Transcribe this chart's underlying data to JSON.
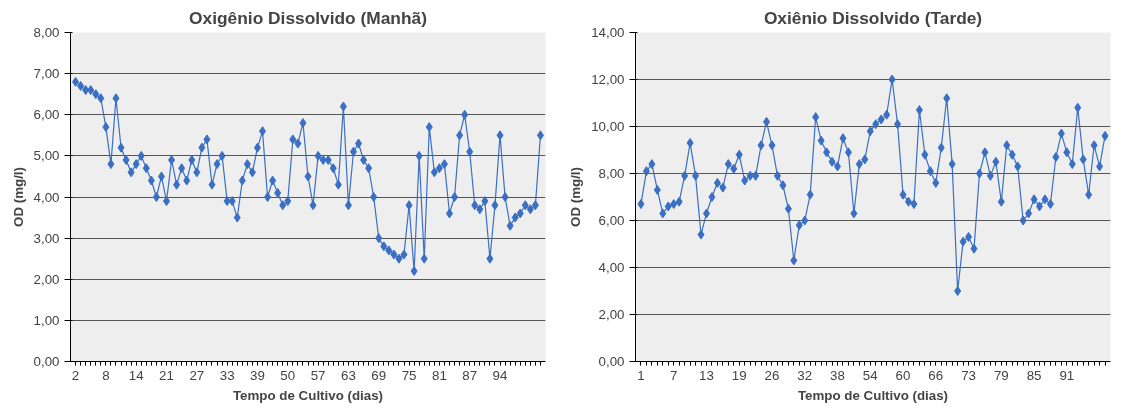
{
  "chart_data": [
    {
      "type": "line",
      "title": "Oxigênio Dissolvido (Manhã)",
      "xlabel": "Tempo de Cultivo (dias)",
      "ylabel": "OD (mg/l)",
      "marker": "diamond",
      "grid": "y",
      "categories": [
        "2",
        null,
        null,
        null,
        null,
        null,
        "8",
        null,
        null,
        null,
        null,
        null,
        "14",
        null,
        null,
        null,
        null,
        null,
        "21",
        null,
        null,
        null,
        null,
        null,
        "27",
        null,
        null,
        null,
        null,
        null,
        "33",
        null,
        null,
        null,
        null,
        null,
        "39",
        null,
        null,
        null,
        null,
        null,
        "50",
        null,
        null,
        null,
        null,
        null,
        "57",
        null,
        null,
        null,
        null,
        null,
        "63",
        null,
        null,
        null,
        null,
        null,
        "69",
        null,
        null,
        null,
        null,
        null,
        "75",
        null,
        null,
        null,
        null,
        null,
        "81",
        null,
        null,
        null,
        null,
        null,
        "87",
        null,
        null,
        null,
        null,
        null,
        "94",
        null,
        null,
        null,
        null,
        null,
        null,
        null,
        null
      ],
      "ylim": [
        0,
        8
      ],
      "yticks": [
        {
          "value": 0,
          "label": "0,00"
        },
        {
          "value": 1,
          "label": "1,00"
        },
        {
          "value": 2,
          "label": "2,00"
        },
        {
          "value": 3,
          "label": "3,00"
        },
        {
          "value": 4,
          "label": "4,00"
        },
        {
          "value": 5,
          "label": "5,00"
        },
        {
          "value": 6,
          "label": "6,00"
        },
        {
          "value": 7,
          "label": "7,00"
        },
        {
          "value": 8,
          "label": "8,00"
        }
      ],
      "series": [
        {
          "color": "#3a6fc4",
          "values": [
            6.8,
            6.7,
            6.6,
            6.6,
            6.5,
            6.4,
            5.7,
            4.8,
            6.4,
            5.2,
            4.9,
            4.6,
            4.8,
            5.0,
            4.7,
            4.4,
            4.0,
            4.5,
            3.9,
            4.9,
            4.3,
            4.7,
            4.4,
            4.9,
            4.6,
            5.2,
            5.4,
            4.3,
            4.8,
            5.0,
            3.9,
            3.9,
            3.5,
            4.4,
            4.8,
            4.6,
            5.2,
            5.6,
            4.0,
            4.4,
            4.1,
            3.8,
            3.9,
            5.4,
            5.3,
            5.8,
            4.5,
            3.8,
            5.0,
            4.9,
            4.9,
            4.7,
            4.3,
            6.2,
            3.8,
            5.1,
            5.3,
            4.9,
            4.7,
            4.0,
            3.0,
            2.8,
            2.7,
            2.6,
            2.5,
            2.6,
            3.8,
            2.2,
            5.0,
            2.5,
            5.7,
            4.6,
            4.7,
            4.8,
            3.6,
            4.0,
            5.5,
            6.0,
            5.1,
            3.8,
            3.7,
            3.9,
            2.5,
            3.8,
            5.5,
            4.0,
            3.3,
            3.5,
            3.6,
            3.8,
            3.7,
            3.8,
            5.5
          ]
        }
      ]
    },
    {
      "type": "line",
      "title": "Oxiênio Dissolvido (Tarde)",
      "xlabel": "Tempo de Cultivo (dias)",
      "ylabel": "OD (mg/l)",
      "marker": "diamond",
      "grid": "y",
      "categories": [
        "1",
        null,
        null,
        null,
        null,
        null,
        "7",
        null,
        null,
        null,
        null,
        null,
        "13",
        null,
        null,
        null,
        null,
        null,
        "19",
        null,
        null,
        null,
        null,
        null,
        "26",
        null,
        null,
        null,
        null,
        null,
        "32",
        null,
        null,
        null,
        null,
        null,
        "38",
        null,
        null,
        null,
        null,
        null,
        "54",
        null,
        null,
        null,
        null,
        null,
        "60",
        null,
        null,
        null,
        null,
        null,
        "66",
        null,
        null,
        null,
        null,
        null,
        "73",
        null,
        null,
        null,
        null,
        null,
        "79",
        null,
        null,
        null,
        null,
        null,
        "85",
        null,
        null,
        null,
        null,
        null,
        "91",
        null,
        null,
        null,
        null,
        null,
        null,
        null
      ],
      "ylim": [
        0,
        14
      ],
      "yticks": [
        {
          "value": 0,
          "label": "0,00"
        },
        {
          "value": 2,
          "label": "2,00"
        },
        {
          "value": 4,
          "label": "4,00"
        },
        {
          "value": 6,
          "label": "6,00"
        },
        {
          "value": 8,
          "label": "8,00"
        },
        {
          "value": 10,
          "label": "10,00"
        },
        {
          "value": 12,
          "label": "12,00"
        },
        {
          "value": 14,
          "label": "14,00"
        }
      ],
      "series": [
        {
          "color": "#3a6fc4",
          "values": [
            6.7,
            8.1,
            8.4,
            7.3,
            6.3,
            6.6,
            6.7,
            6.8,
            7.9,
            9.3,
            7.9,
            5.4,
            6.3,
            7.0,
            7.6,
            7.4,
            8.4,
            8.2,
            8.8,
            7.7,
            7.9,
            7.9,
            9.2,
            10.2,
            9.2,
            7.9,
            7.5,
            6.5,
            4.3,
            5.8,
            6.0,
            7.1,
            10.4,
            9.4,
            8.9,
            8.5,
            8.3,
            9.5,
            8.9,
            6.3,
            8.4,
            8.6,
            9.8,
            10.1,
            10.3,
            10.5,
            12.0,
            10.1,
            7.1,
            6.8,
            6.7,
            10.7,
            8.8,
            8.1,
            7.6,
            9.1,
            11.2,
            8.4,
            3.0,
            5.1,
            5.3,
            4.8,
            8.0,
            8.9,
            7.9,
            8.5,
            6.8,
            9.2,
            8.8,
            8.3,
            6.0,
            6.3,
            6.9,
            6.6,
            6.9,
            6.7,
            8.7,
            9.7,
            8.9,
            8.4,
            10.8,
            8.6,
            7.1,
            9.2,
            8.3,
            9.6
          ]
        }
      ]
    }
  ]
}
